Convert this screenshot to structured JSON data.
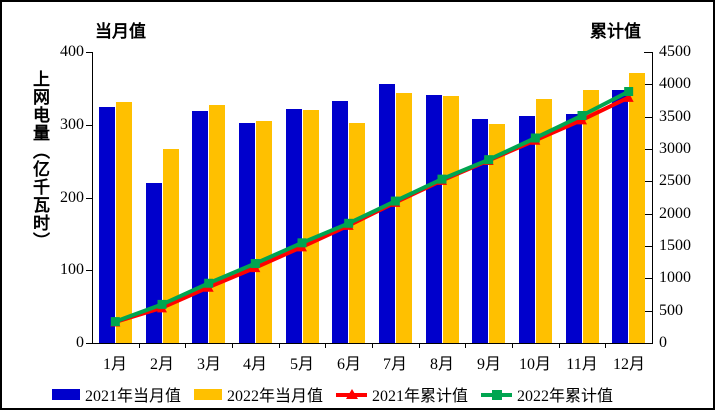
{
  "titles": {
    "left_axis_header": "当月值",
    "right_axis_header": "累计值",
    "y_axis_title": "上网电量（亿千瓦时）"
  },
  "colors": {
    "bar_2021": "#0000CC",
    "bar_2022": "#FFC000",
    "line_2021": "#FF0000",
    "line_2022": "#00A550",
    "axis": "#000000",
    "background": "#FFFFFF"
  },
  "chart_data": {
    "type": "bar+line",
    "categories": [
      "1月",
      "2月",
      "3月",
      "4月",
      "5月",
      "6月",
      "7月",
      "8月",
      "9月",
      "10月",
      "11月",
      "12月"
    ],
    "series": [
      {
        "name": "2021年当月值",
        "type": "bar",
        "axis": "left",
        "color": "#0000CC",
        "values": [
          324,
          220,
          319,
          302,
          321,
          332,
          356,
          341,
          308,
          312,
          315,
          348
        ]
      },
      {
        "name": "2022年当月值",
        "type": "bar",
        "axis": "left",
        "color": "#FFC000",
        "values": [
          331,
          266,
          327,
          305,
          320,
          302,
          344,
          339,
          301,
          335,
          348,
          371
        ]
      },
      {
        "name": "2021年累计值",
        "type": "line",
        "axis": "right",
        "color": "#FF0000",
        "marker": "triangle",
        "values": [
          324,
          544,
          863,
          1165,
          1486,
          1818,
          2174,
          2515,
          2823,
          3135,
          3450,
          3798
        ]
      },
      {
        "name": "2022年累计值",
        "type": "line",
        "axis": "right",
        "color": "#00A550",
        "marker": "square",
        "values": [
          331,
          597,
          924,
          1229,
          1549,
          1851,
          2195,
          2534,
          2835,
          3170,
          3518,
          3889
        ]
      }
    ],
    "left_axis": {
      "min": 0,
      "max": 400,
      "step": 100,
      "ticks": [
        "0",
        "100",
        "200",
        "300",
        "400"
      ]
    },
    "right_axis": {
      "min": 0,
      "max": 4500,
      "step": 500,
      "ticks": [
        "0",
        "500",
        "1000",
        "1500",
        "2000",
        "2500",
        "3000",
        "3500",
        "4000",
        "4500"
      ]
    },
    "grid": false,
    "legend_position": "bottom"
  }
}
